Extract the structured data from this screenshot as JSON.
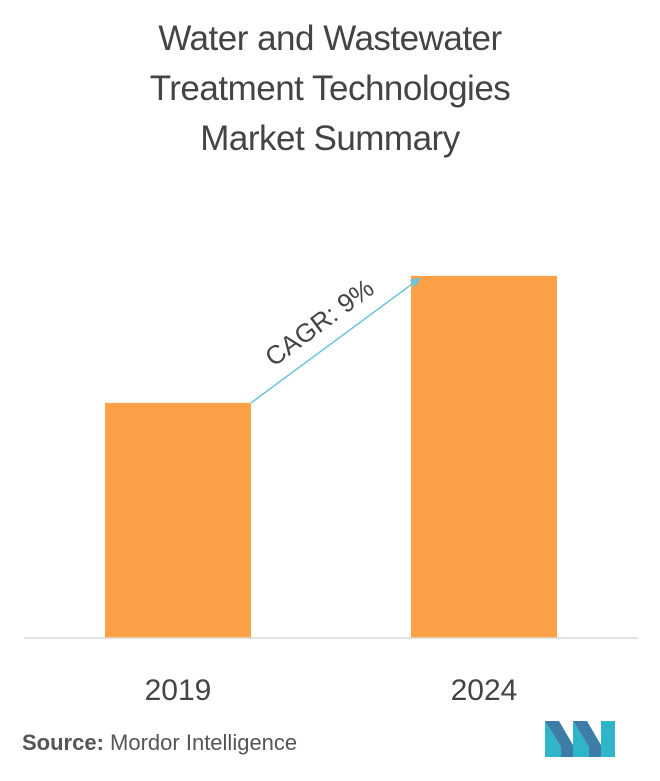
{
  "title_lines": [
    "Water and Wastewater",
    "Treatment Technologies",
    "Market Summary"
  ],
  "chart_data": {
    "type": "bar",
    "categories": [
      "2019",
      "2024"
    ],
    "values": [
      1.0,
      1.54
    ],
    "ylim": [
      0,
      1.65
    ],
    "grid": false,
    "legend": "none",
    "annotation": "CAGR: 9%",
    "colors": {
      "bar": "#FCA148",
      "arrow": "#6CC5D5",
      "axis": "#D9D9D9",
      "tick_text": "#444444"
    }
  },
  "source": {
    "label": "Source:",
    "text": "Mordor Intelligence"
  },
  "logo": {
    "icon": "mordor-intelligence-logo-icon",
    "colors": [
      "#2FB5C8",
      "#3E7DA8"
    ]
  }
}
